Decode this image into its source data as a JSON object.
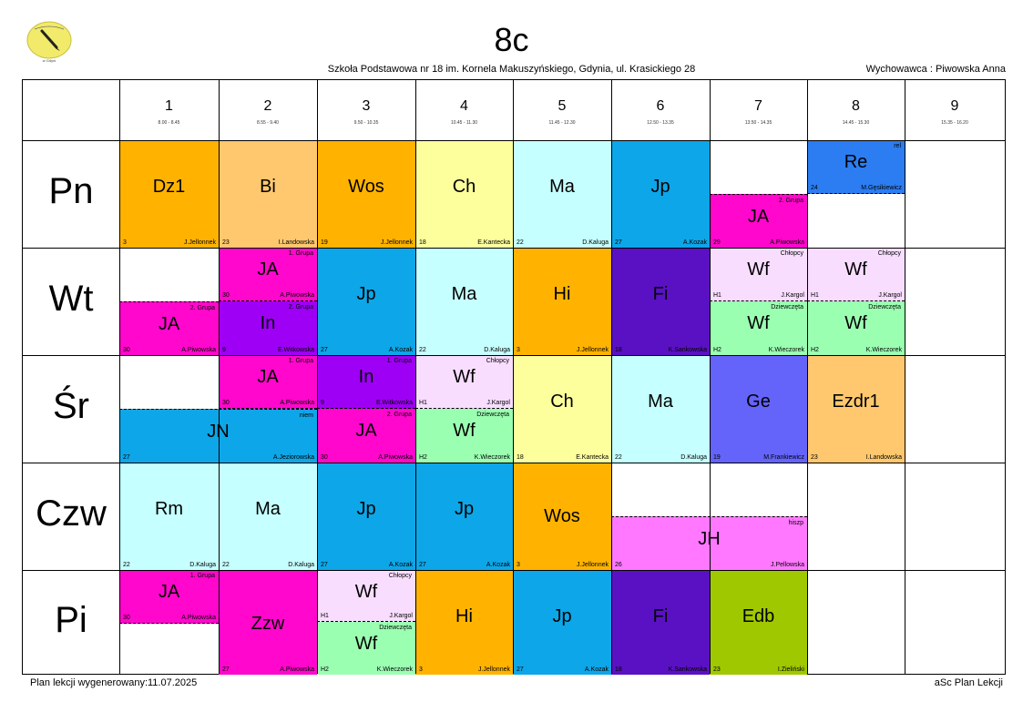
{
  "header": {
    "class_name": "8c",
    "school": "Szkoła Podstawowa nr 18 im. Kornela Makuszyńskiego, Gdynia, ul. Krasickiego 28",
    "form_teacher": "Wychowawca : Piwowska Anna"
  },
  "footer": {
    "generated": "Plan lekcji wygenerowany:11.07.2025",
    "app": "aSc Plan Lekcji"
  },
  "periods": [
    {
      "num": "1",
      "time": "8.00 - 8.45"
    },
    {
      "num": "2",
      "time": "8.55 - 9.40"
    },
    {
      "num": "3",
      "time": "9.50 - 10.35"
    },
    {
      "num": "4",
      "time": "10.45 - 11.30"
    },
    {
      "num": "5",
      "time": "11.45 - 12.30"
    },
    {
      "num": "6",
      "time": "12.50 - 13.35"
    },
    {
      "num": "7",
      "time": "13.50 - 14.35"
    },
    {
      "num": "8",
      "time": "14.45 - 15.30"
    },
    {
      "num": "9",
      "time": "15.35 - 16.20"
    }
  ],
  "days": [
    "Pn",
    "Wt",
    "Śr",
    "Czw",
    "Pi"
  ],
  "colors": {
    "orange": "#ffb300",
    "peach": "#ffc86e",
    "yellow": "#fdff9c",
    "cyan_light": "#c6ffff",
    "blue": "#0da6e8",
    "magenta": "#ff07cc",
    "purple": "#9e00f5",
    "violet": "#5a11c3",
    "pink_light": "#f8ddff",
    "green_light": "#9bffb2",
    "indigo": "#6464fa",
    "olive": "#a0c800",
    "pink": "#ff78ff",
    "blue_dark": "#2c7df2"
  },
  "lessons": {
    "pn": [
      {
        "subject": "Dz1",
        "room": "3",
        "teacher": "J.Jellonnek",
        "group": ""
      },
      {
        "subject": "Bi",
        "room": "23",
        "teacher": "I.Landowska",
        "group": ""
      },
      {
        "subject": "Wos",
        "room": "19",
        "teacher": "J.Jellonnek",
        "group": ""
      },
      {
        "subject": "Ch",
        "room": "18",
        "teacher": "E.Kantecka",
        "group": ""
      },
      {
        "subject": "Ma",
        "room": "22",
        "teacher": "D.Kaluga",
        "group": ""
      },
      {
        "subject": "Jp",
        "room": "27",
        "teacher": "A.Kozak",
        "group": ""
      },
      {
        "subject": "JA",
        "room": "29",
        "teacher": "A.Piwowska",
        "group": "2. Grupa"
      },
      {
        "subject": "Re",
        "room": "24",
        "teacher": "M.Gęsikiewicz",
        "group": "rel"
      }
    ],
    "wt": [
      {
        "subject": "JA",
        "room": "30",
        "teacher": "A.Piwowska",
        "group": "2. Grupa"
      },
      {
        "subject": "JA",
        "room": "30",
        "teacher": "A.Piwowska",
        "group": "1. Grupa"
      },
      {
        "subject": "In",
        "room": "9",
        "teacher": "E.Witkowska",
        "group": "2. Grupa"
      },
      {
        "subject": "Jp",
        "room": "27",
        "teacher": "A.Kozak",
        "group": ""
      },
      {
        "subject": "Ma",
        "room": "22",
        "teacher": "D.Kaluga",
        "group": ""
      },
      {
        "subject": "Hi",
        "room": "3",
        "teacher": "J.Jellonnek",
        "group": ""
      },
      {
        "subject": "Fi",
        "room": "18",
        "teacher": "K.Sankowska",
        "group": ""
      },
      {
        "subject": "Wf",
        "room": "H1",
        "teacher": "J.Kargol",
        "group": "Chłopcy"
      },
      {
        "subject": "Wf",
        "room": "H2",
        "teacher": "K.Wieczorek",
        "group": "Dziewczęta"
      },
      {
        "subject": "Wf",
        "room": "H1",
        "teacher": "J.Kargol",
        "group": "Chłopcy"
      },
      {
        "subject": "Wf",
        "room": "H2",
        "teacher": "K.Wieczorek",
        "group": "Dziewczęta"
      }
    ],
    "sr": [
      {
        "subject": "JN",
        "room": "27",
        "teacher": "A.Jeziorowska",
        "group": "niem"
      },
      {
        "subject": "JA",
        "room": "30",
        "teacher": "A.Piwowska",
        "group": "1. Grupa"
      },
      {
        "subject": "In",
        "room": "9",
        "teacher": "E.Witkowska",
        "group": "1. Grupa"
      },
      {
        "subject": "JA",
        "room": "30",
        "teacher": "A.Piwowska",
        "group": "2. Grupa"
      },
      {
        "subject": "Wf",
        "room": "H1",
        "teacher": "J.Kargol",
        "group": "Chłopcy"
      },
      {
        "subject": "Wf",
        "room": "H2",
        "teacher": "K.Wieczorek",
        "group": "Dziewczęta"
      },
      {
        "subject": "Ch",
        "room": "18",
        "teacher": "E.Kantecka",
        "group": ""
      },
      {
        "subject": "Ma",
        "room": "22",
        "teacher": "D.Kaluga",
        "group": ""
      },
      {
        "subject": "Ge",
        "room": "19",
        "teacher": "M.Frankiewicz",
        "group": ""
      },
      {
        "subject": "Ezdr1",
        "room": "23",
        "teacher": "I.Landowska",
        "group": ""
      }
    ],
    "czw": [
      {
        "subject": "Rm",
        "room": "22",
        "teacher": "D.Kaluga",
        "group": ""
      },
      {
        "subject": "Ma",
        "room": "22",
        "teacher": "D.Kaluga",
        "group": ""
      },
      {
        "subject": "Jp",
        "room": "27",
        "teacher": "A.Kozak",
        "group": ""
      },
      {
        "subject": "Jp",
        "room": "27",
        "teacher": "A.Kozak",
        "group": ""
      },
      {
        "subject": "Wos",
        "room": "3",
        "teacher": "J.Jellonnek",
        "group": ""
      },
      {
        "subject": "JH",
        "room": "26",
        "teacher": "J.Pellowska",
        "group": "hiszp"
      }
    ],
    "pi": [
      {
        "subject": "JA",
        "room": "30",
        "teacher": "A.Piwowska",
        "group": "1. Grupa"
      },
      {
        "subject": "Zzw",
        "room": "27",
        "teacher": "A.Piwowska",
        "group": ""
      },
      {
        "subject": "Wf",
        "room": "H1",
        "teacher": "J.Kargol",
        "group": "Chłopcy"
      },
      {
        "subject": "Wf",
        "room": "H2",
        "teacher": "K.Wieczorek",
        "group": "Dziewczęta"
      },
      {
        "subject": "Hi",
        "room": "3",
        "teacher": "J.Jellonnek",
        "group": ""
      },
      {
        "subject": "Jp",
        "room": "27",
        "teacher": "A.Kozak",
        "group": ""
      },
      {
        "subject": "Fi",
        "room": "18",
        "teacher": "K.Sankowska",
        "group": ""
      },
      {
        "subject": "Edb",
        "room": "23",
        "teacher": "I.Zieliński",
        "group": ""
      }
    ]
  }
}
